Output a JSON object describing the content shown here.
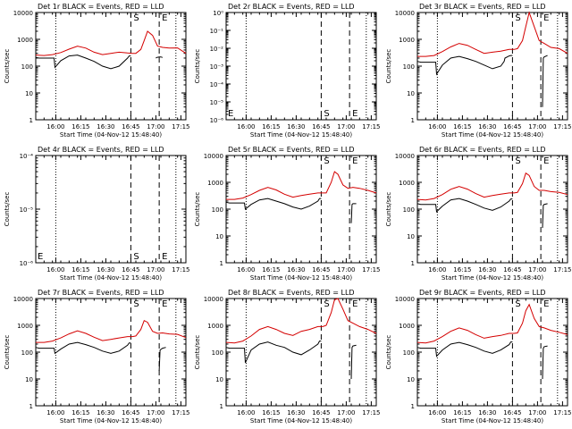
{
  "colors": {
    "events": "#000000",
    "lld": "#d40000",
    "axes": "#000000"
  },
  "common": {
    "x_ticks": [
      "16:00",
      "16:15",
      "16:30",
      "16:45",
      "17:00",
      "17:15"
    ],
    "xlabel": "Start Time (04-Nov-12 15:48:40)",
    "ylabel": "Counts/sec",
    "marker_s": "S",
    "marker_e": "E"
  },
  "chart_data": [
    {
      "type": "line",
      "title": "Det 1r BLACK = Events, RED = LLD",
      "scale": "log",
      "ylim": [
        1,
        10000
      ],
      "y_ticks": [
        "1",
        "10",
        "100",
        "1000",
        "10000"
      ],
      "xlim_min": [
        0,
        90
      ],
      "markers": {
        "dotted": [
          12,
          84
        ],
        "dashed_s": 57,
        "dashed_e": 74
      },
      "series": [
        {
          "color_key": "lld",
          "x": [
            0,
            5,
            10,
            15,
            20,
            25,
            30,
            35,
            40,
            45,
            50,
            55,
            58,
            60,
            63,
            65,
            67,
            70,
            73,
            76,
            80,
            85,
            90
          ],
          "y": [
            260,
            250,
            270,
            320,
            430,
            560,
            470,
            330,
            270,
            300,
            330,
            310,
            300,
            300,
            420,
            900,
            2000,
            1400,
            560,
            500,
            470,
            480,
            300
          ]
        },
        {
          "color_key": "events",
          "x": [
            0,
            2,
            8,
            9,
            10,
            11,
            11.5,
            15,
            20,
            25,
            30,
            35,
            40,
            45,
            50,
            55,
            56,
            56.5,
            57
          ],
          "y": [
            210,
            200,
            200,
            200,
            200,
            200,
            90,
            160,
            240,
            260,
            200,
            150,
            100,
            80,
            100,
            200,
            240,
            240,
            240
          ]
        },
        {
          "color_key": "events",
          "x": [
            72,
            72.5,
            74,
            75,
            76
          ],
          "y": [
            200,
            210,
            220,
            220,
            210
          ]
        }
      ]
    },
    {
      "type": "line",
      "title": "Det 2r BLACK = Events, RED = LLD",
      "scale": "log",
      "ylim": [
        1e-06,
        1
      ],
      "y_ticks": [
        "10⁻⁶",
        "10⁻⁵",
        "10⁻⁴",
        "10⁻³",
        "10⁻²",
        "10⁻¹",
        "10⁰"
      ],
      "xlim_min": [
        0,
        90
      ],
      "markers": {
        "dotted": [
          12,
          84
        ],
        "dashed_s": 57,
        "dashed_e": 74
      },
      "series": []
    },
    {
      "type": "line",
      "title": "Det 3r BLACK = Events, RED = LLD",
      "scale": "log",
      "ylim": [
        1,
        10000
      ],
      "y_ticks": [
        "1",
        "10",
        "100",
        "1000",
        "10000"
      ],
      "xlim_min": [
        0,
        90
      ],
      "markers": {
        "dotted": [
          12,
          84
        ],
        "dashed_s": 57,
        "dashed_e": 74
      },
      "series": [
        {
          "color_key": "lld",
          "x": [
            0,
            5,
            10,
            15,
            20,
            25,
            30,
            35,
            40,
            45,
            50,
            55,
            58,
            60,
            63,
            65,
            67,
            70,
            73,
            76,
            80,
            85,
            90
          ],
          "y": [
            230,
            230,
            250,
            350,
            520,
            700,
            600,
            420,
            300,
            330,
            360,
            420,
            420,
            450,
            900,
            3000,
            12000,
            3000,
            900,
            700,
            500,
            450,
            300
          ]
        },
        {
          "color_key": "events",
          "x": [
            0,
            2,
            8,
            9,
            10,
            11,
            11.5,
            15,
            20,
            25,
            30,
            35,
            40,
            45,
            50,
            52,
            52.5,
            55,
            56,
            57
          ],
          "y": [
            150,
            140,
            140,
            140,
            140,
            140,
            50,
            110,
            200,
            230,
            190,
            150,
            110,
            80,
            100,
            150,
            200,
            240,
            250,
            250
          ]
        },
        {
          "color_key": "events",
          "x": [
            75,
            75.5,
            76,
            78
          ],
          "y": [
            3,
            200,
            220,
            250
          ]
        }
      ]
    },
    {
      "type": "line",
      "title": "Det 4r BLACK = Events, RED = LLD",
      "scale": "log",
      "ylim": [
        1e-06,
        0.0001
      ],
      "y_ticks": [
        "10⁻⁶",
        "10⁻⁵",
        "10⁻⁴"
      ],
      "xlim_min": [
        0,
        90
      ],
      "markers": {
        "dotted": [
          12,
          84
        ],
        "dashed_s": 57,
        "dashed_e": 74
      },
      "series": []
    },
    {
      "type": "line",
      "title": "Det 5r BLACK = Events, RED = LLD",
      "scale": "log",
      "ylim": [
        1,
        10000
      ],
      "y_ticks": [
        "1",
        "10",
        "100",
        "1000",
        "10000"
      ],
      "xlim_min": [
        0,
        90
      ],
      "markers": {
        "dotted": [
          12,
          84
        ],
        "dashed_s": 57,
        "dashed_e": 74
      },
      "series": [
        {
          "color_key": "lld",
          "x": [
            0,
            5,
            10,
            15,
            20,
            25,
            30,
            35,
            40,
            45,
            50,
            55,
            58,
            60,
            63,
            65,
            67,
            70,
            73,
            76,
            80,
            85,
            90
          ],
          "y": [
            230,
            230,
            260,
            350,
            500,
            650,
            520,
            360,
            280,
            320,
            360,
            400,
            400,
            400,
            1000,
            2500,
            2000,
            800,
            600,
            650,
            600,
            500,
            400
          ]
        },
        {
          "color_key": "events",
          "x": [
            0,
            2,
            8,
            9,
            10,
            11,
            11.5,
            15,
            20,
            25,
            30,
            35,
            40,
            45,
            50,
            55,
            56,
            56.5,
            57
          ],
          "y": [
            180,
            170,
            170,
            170,
            170,
            170,
            100,
            150,
            220,
            250,
            200,
            160,
            120,
            100,
            130,
            200,
            250,
            250,
            250
          ]
        },
        {
          "color_key": "events",
          "x": [
            75,
            75.5,
            76,
            78
          ],
          "y": [
            30,
            150,
            160,
            160
          ]
        }
      ]
    },
    {
      "type": "line",
      "title": "Det 6r BLACK = Events, RED = LLD",
      "scale": "log",
      "ylim": [
        1,
        10000
      ],
      "y_ticks": [
        "1",
        "10",
        "100",
        "1000",
        "10000"
      ],
      "xlim_min": [
        0,
        90
      ],
      "markers": {
        "dotted": [
          12,
          84
        ],
        "dashed_s": 57,
        "dashed_e": 74
      },
      "series": [
        {
          "color_key": "lld",
          "x": [
            0,
            5,
            10,
            15,
            20,
            25,
            30,
            35,
            40,
            45,
            50,
            55,
            58,
            60,
            63,
            65,
            67,
            70,
            73,
            76,
            80,
            85,
            90
          ],
          "y": [
            230,
            220,
            250,
            350,
            550,
            700,
            560,
            380,
            280,
            320,
            360,
            400,
            400,
            420,
            900,
            2200,
            1800,
            700,
            500,
            500,
            450,
            420,
            350
          ]
        },
        {
          "color_key": "events",
          "x": [
            0,
            2,
            8,
            9,
            10,
            11,
            11.5,
            15,
            20,
            25,
            30,
            35,
            40,
            45,
            50,
            55,
            56,
            56.5,
            57
          ],
          "y": [
            160,
            150,
            150,
            150,
            150,
            150,
            80,
            130,
            220,
            250,
            200,
            150,
            110,
            90,
            120,
            200,
            240,
            240,
            240
          ]
        },
        {
          "color_key": "events",
          "x": [
            75,
            75.5,
            76,
            78
          ],
          "y": [
            20,
            140,
            150,
            160
          ]
        }
      ]
    },
    {
      "type": "line",
      "title": "Det 7r BLACK = Events, RED = LLD",
      "scale": "log",
      "ylim": [
        1,
        10000
      ],
      "y_ticks": [
        "1",
        "10",
        "100",
        "1000",
        "10000"
      ],
      "xlim_min": [
        0,
        90
      ],
      "markers": {
        "dotted": [
          12,
          84
        ],
        "dashed_s": 57,
        "dashed_e": 74
      },
      "series": [
        {
          "color_key": "lld",
          "x": [
            0,
            5,
            10,
            15,
            20,
            25,
            30,
            35,
            40,
            45,
            50,
            55,
            58,
            60,
            63,
            65,
            67,
            70,
            73,
            76,
            80,
            85,
            90
          ],
          "y": [
            230,
            230,
            260,
            340,
            480,
            620,
            500,
            360,
            270,
            300,
            340,
            380,
            380,
            400,
            700,
            1500,
            1300,
            600,
            500,
            520,
            480,
            460,
            350
          ]
        },
        {
          "color_key": "events",
          "x": [
            0,
            2,
            8,
            9,
            10,
            11,
            11.5,
            15,
            20,
            25,
            30,
            35,
            40,
            45,
            50,
            55,
            56,
            56.5,
            57
          ],
          "y": [
            150,
            140,
            140,
            140,
            140,
            140,
            90,
            130,
            200,
            230,
            190,
            150,
            110,
            90,
            110,
            180,
            220,
            220,
            220
          ]
        },
        {
          "color_key": "events",
          "x": [
            74,
            74.5,
            76,
            78
          ],
          "y": [
            20,
            120,
            140,
            150
          ]
        }
      ]
    },
    {
      "type": "line",
      "title": "Det 8r BLACK = Events, RED = LLD",
      "scale": "log",
      "ylim": [
        1,
        10000
      ],
      "y_ticks": [
        "1",
        "10",
        "100",
        "1000",
        "10000"
      ],
      "xlim_min": [
        0,
        90
      ],
      "markers": {
        "dotted": [
          12,
          84
        ],
        "dashed_s": 57,
        "dashed_e": 74
      },
      "series": [
        {
          "color_key": "lld",
          "x": [
            0,
            5,
            10,
            15,
            20,
            25,
            30,
            35,
            40,
            45,
            50,
            55,
            58,
            60,
            63,
            65,
            67,
            70,
            73,
            76,
            80,
            85,
            90
          ],
          "y": [
            230,
            220,
            260,
            400,
            700,
            900,
            700,
            500,
            420,
            600,
            700,
            900,
            900,
            1000,
            3000,
            9000,
            12000,
            4000,
            1500,
            1200,
            900,
            700,
            500
          ]
        },
        {
          "color_key": "events",
          "x": [
            0,
            2,
            8,
            9,
            10,
            11,
            11.5,
            15,
            20,
            25,
            30,
            35,
            40,
            45,
            50,
            55,
            56,
            56.5,
            57
          ],
          "y": [
            150,
            140,
            140,
            140,
            140,
            140,
            40,
            120,
            200,
            240,
            180,
            150,
            100,
            80,
            120,
            200,
            260,
            260,
            260
          ]
        },
        {
          "color_key": "events",
          "x": [
            75,
            75.5,
            76,
            78
          ],
          "y": [
            10,
            150,
            170,
            180
          ]
        }
      ]
    },
    {
      "type": "line",
      "title": "Det 9r BLACK = Events, RED = LLD",
      "scale": "log",
      "ylim": [
        1,
        10000
      ],
      "y_ticks": [
        "1",
        "10",
        "100",
        "1000",
        "10000"
      ],
      "xlim_min": [
        0,
        90
      ],
      "markers": {
        "dotted": [
          12,
          84
        ],
        "dashed_s": 57,
        "dashed_e": 74
      },
      "series": [
        {
          "color_key": "lld",
          "x": [
            0,
            5,
            10,
            15,
            20,
            25,
            30,
            35,
            40,
            45,
            50,
            55,
            58,
            60,
            63,
            65,
            67,
            70,
            73,
            76,
            80,
            85,
            90
          ],
          "y": [
            230,
            220,
            260,
            380,
            600,
            800,
            650,
            450,
            330,
            380,
            420,
            500,
            500,
            520,
            1200,
            3500,
            6000,
            1800,
            900,
            800,
            650,
            550,
            450
          ]
        },
        {
          "color_key": "events",
          "x": [
            0,
            2,
            8,
            9,
            10,
            11,
            11.5,
            15,
            20,
            25,
            30,
            35,
            40,
            45,
            50,
            55,
            56,
            56.5,
            57
          ],
          "y": [
            150,
            140,
            140,
            140,
            140,
            140,
            70,
            120,
            200,
            230,
            190,
            150,
            110,
            90,
            120,
            190,
            240,
            240,
            240
          ]
        },
        {
          "color_key": "events",
          "x": [
            75,
            75.5,
            76,
            78
          ],
          "y": [
            10,
            140,
            160,
            170
          ]
        }
      ]
    }
  ]
}
